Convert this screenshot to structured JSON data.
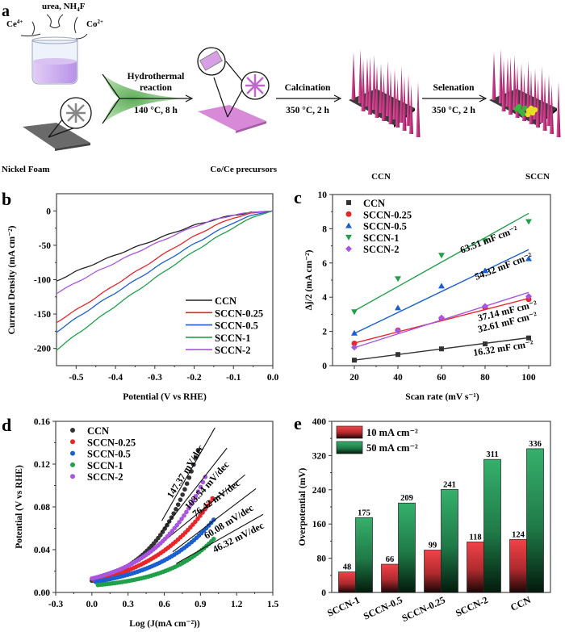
{
  "panel_a": {
    "letter": "a",
    "reagents": {
      "left": "Ce",
      "left_sup": "4+",
      "top": "urea, NH",
      "top_sub": "4",
      "top_end": "F",
      "right": "Co",
      "right_sup": "2+"
    },
    "step1": {
      "name": "Hydrothermal",
      "name2": "reaction",
      "cond": "140 °C, 8 h"
    },
    "step2": {
      "name": "Calcination",
      "cond": "350 °C, 2 h"
    },
    "step3": {
      "name": "Selenation",
      "cond": "350 °C, 2 h"
    },
    "captions": [
      "Nickel Foam",
      "Co/Ce precursors",
      "CCN",
      "SCCN"
    ],
    "colors": {
      "foam": "#5e5e5e",
      "precursor": "#d67fd6",
      "needle": "#b0206e",
      "liquid": "#c9a8ea",
      "green": "#8fc98a",
      "se_green": "#35b83a",
      "se_yellow": "#e8e020"
    }
  },
  "chart_data": [
    {
      "panel": "b",
      "type": "line",
      "title": "",
      "xlabel": "Potential (V vs RHE)",
      "ylabel": "Current Density (mA cm⁻²)",
      "xlim": [
        -0.55,
        0.0
      ],
      "ylim": [
        -225,
        25
      ],
      "xticks": [
        -0.5,
        -0.4,
        -0.3,
        -0.2,
        -0.1,
        0.0
      ],
      "xtick_labels": [
        "-0.5",
        "-0.4",
        "-0.3",
        "-0.2",
        "-0.1",
        "0.0"
      ],
      "yticks": [
        0,
        -50,
        -100,
        -150,
        -200
      ],
      "ytick_labels": [
        "0",
        "-50",
        "-100",
        "-150",
        "-200"
      ],
      "legend": "bottom-right",
      "x": [
        -0.55,
        -0.5,
        -0.45,
        -0.4,
        -0.35,
        -0.3,
        -0.25,
        -0.2,
        -0.15,
        -0.1,
        -0.05,
        0.0
      ],
      "series": [
        {
          "name": "CCN",
          "color": "#222222",
          "values": [
            -102,
            -88,
            -76,
            -64,
            -53,
            -42,
            -31,
            -21,
            -13,
            -6,
            -2,
            0
          ]
        },
        {
          "name": "SCCN-0.25",
          "color": "#e8262a",
          "values": [
            -162,
            -144,
            -126,
            -107,
            -89,
            -71,
            -53,
            -37,
            -22,
            -10,
            -3,
            0
          ]
        },
        {
          "name": "SCCN-0.5",
          "color": "#1a5fd0",
          "values": [
            -176,
            -156,
            -137,
            -119,
            -101,
            -83,
            -65,
            -48,
            -32,
            -17,
            -6,
            0
          ]
        },
        {
          "name": "SCCN-1",
          "color": "#21a04a",
          "values": [
            -202,
            -180,
            -159,
            -138,
            -118,
            -98,
            -78,
            -59,
            -41,
            -24,
            -9,
            0
          ]
        },
        {
          "name": "SCCN-2",
          "color": "#a855e0",
          "values": [
            -120,
            -104,
            -89,
            -75,
            -61,
            -48,
            -35,
            -23,
            -13,
            -6,
            -2,
            0
          ]
        }
      ]
    },
    {
      "panel": "c",
      "type": "scatter",
      "title": "",
      "xlabel": "Scan rate (mV s⁻¹)",
      "ylabel": "Δj/2 (mA cm⁻²)",
      "xlim": [
        10,
        110
      ],
      "ylim": [
        0,
        10
      ],
      "xticks": [
        20,
        40,
        60,
        80,
        100
      ],
      "xtick_labels": [
        "20",
        "40",
        "60",
        "80",
        "100"
      ],
      "yticks": [
        0,
        2,
        4,
        6,
        8,
        10
      ],
      "ytick_labels": [
        "0",
        "2",
        "4",
        "6",
        "8",
        "10"
      ],
      "legend": "top-left",
      "x": [
        20,
        40,
        60,
        80,
        100
      ],
      "series": [
        {
          "name": "CCN",
          "color": "#333333",
          "marker": "square",
          "values": [
            0.32,
            0.65,
            0.98,
            1.27,
            1.62
          ],
          "fit": [
            0.32,
            1.63
          ],
          "annotation": "16.32 mF cm⁻²"
        },
        {
          "name": "SCCN-0.25",
          "color": "#e8262a",
          "marker": "circle",
          "values": [
            1.3,
            2.07,
            2.75,
            3.4,
            3.88
          ],
          "fit": [
            1.32,
            3.93
          ],
          "annotation": "32.61 mF cm⁻²"
        },
        {
          "name": "SCCN-0.5",
          "color": "#1a5fd0",
          "marker": "triangle-up",
          "values": [
            1.9,
            3.38,
            4.65,
            5.55,
            6.25
          ],
          "fit": [
            1.88,
            6.78
          ],
          "annotation": "54.32 mF cm⁻²"
        },
        {
          "name": "SCCN-1",
          "color": "#21a04a",
          "marker": "triangle-down",
          "values": [
            3.15,
            5.08,
            6.45,
            7.3,
            8.42
          ],
          "fit": [
            3.2,
            8.9
          ],
          "annotation": "63.51 mF cm⁻²"
        },
        {
          "name": "SCCN-2",
          "color": "#a855e0",
          "marker": "diamond",
          "values": [
            1.07,
            2.05,
            2.8,
            3.47,
            4.05
          ],
          "fit": [
            1.05,
            4.28
          ],
          "annotation": "37.14 mF cm⁻²"
        }
      ]
    },
    {
      "panel": "d",
      "type": "scatter",
      "title": "",
      "xlabel": "Log (J(mA cm⁻²))",
      "ylabel": "Potential (V vs RHE)",
      "xlim": [
        -0.3,
        1.5
      ],
      "ylim": [
        0,
        0.16
      ],
      "xticks": [
        -0.3,
        0.0,
        0.3,
        0.6,
        0.9,
        1.2,
        1.5
      ],
      "xtick_labels": [
        "-0.3",
        "0.0",
        "0.3",
        "0.6",
        "0.9",
        "1.2",
        "1.5"
      ],
      "yticks": [
        0,
        0.04,
        0.08,
        0.12,
        0.16
      ],
      "ytick_labels": [
        "0.00",
        "0.04",
        "0.08",
        "0.12",
        "0.16"
      ],
      "legend": "top-left",
      "series": [
        {
          "name": "CCN",
          "color": "#333333",
          "x_range": [
            0.0,
            0.88
          ],
          "y_start": 0.011,
          "y_end": 0.133,
          "curvature": 2.6,
          "fit_x": [
            0.58,
            1.02
          ],
          "fit_y": [
            0.067,
            0.154
          ],
          "annotation": "147.37 mV/dec"
        },
        {
          "name": "SCCN-0.25",
          "color": "#e8262a",
          "x_range": [
            0.02,
            1.0
          ],
          "y_start": 0.011,
          "y_end": 0.088,
          "curvature": 1.9,
          "fit_x": [
            0.62,
            1.27
          ],
          "fit_y": [
            0.05,
            0.11
          ],
          "annotation": "76.42 mV/dec"
        },
        {
          "name": "SCCN-0.5",
          "color": "#1a5fd0",
          "x_range": [
            0.03,
            1.01
          ],
          "y_start": 0.01,
          "y_end": 0.068,
          "curvature": 2.0,
          "fit_x": [
            0.67,
            1.36
          ],
          "fit_y": [
            0.038,
            0.097
          ],
          "annotation": "60.08 mV/dec"
        },
        {
          "name": "SCCN-1",
          "color": "#21a04a",
          "x_range": [
            0.05,
            1.01
          ],
          "y_start": 0.007,
          "y_end": 0.05,
          "curvature": 2.4,
          "fit_x": [
            0.7,
            1.42
          ],
          "fit_y": [
            0.027,
            0.073
          ],
          "annotation": "46.32 mV/dec"
        },
        {
          "name": "SCCN-2",
          "color": "#a855e0",
          "x_range": [
            0.0,
            0.94
          ],
          "y_start": 0.013,
          "y_end": 0.108,
          "curvature": 2.2,
          "fit_x": [
            0.57,
            1.12
          ],
          "fit_y": [
            0.056,
            0.135
          ],
          "annotation": "103.54 mV/dec"
        }
      ]
    },
    {
      "panel": "e",
      "type": "bar",
      "title": "",
      "xlabel": "",
      "ylabel": "Overpotential (mV)",
      "ylim": [
        0,
        400
      ],
      "yticks": [
        0,
        80,
        160,
        240,
        320,
        400
      ],
      "ytick_labels": [
        "0",
        "80",
        "160",
        "240",
        "320",
        "400"
      ],
      "legend": "top-left",
      "categories": [
        "SCCN-1",
        "SCCN-0.5",
        "SCCN-0.25",
        "SCCN-2",
        "CCN"
      ],
      "series": [
        {
          "name": "10 mA cm⁻²",
          "color": "#e8303a",
          "values": [
            48,
            66,
            99,
            118,
            124
          ]
        },
        {
          "name": "50 mA cm⁻²",
          "color": "#2fa865",
          "values": [
            175,
            209,
            241,
            311,
            336
          ]
        }
      ]
    }
  ]
}
